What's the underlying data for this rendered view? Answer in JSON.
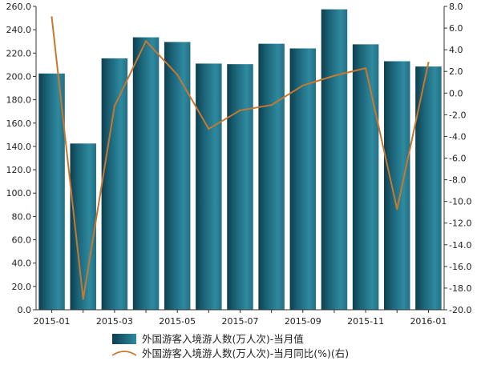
{
  "chart_data": {
    "type": "bar",
    "categories": [
      "2015-01",
      "2015-02",
      "2015-03",
      "2015-04",
      "2015-05",
      "2015-06",
      "2015-07",
      "2015-08",
      "2015-09",
      "2015-10",
      "2015-11",
      "2015-12",
      "2016-01"
    ],
    "x_tick_labels": [
      "2015-01",
      "2015-03",
      "2015-05",
      "2015-07",
      "2015-09",
      "2015-11",
      "2016-01"
    ],
    "series": [
      {
        "name": "外国游客入境游人数(万人次)-当月值",
        "type": "bar",
        "axis": "left",
        "color": "#1f6f84",
        "values": [
          202.5,
          142.5,
          215.5,
          233.5,
          229.5,
          211.0,
          210.5,
          228.0,
          224.0,
          257.5,
          227.5,
          213.0,
          208.5
        ]
      },
      {
        "name": "外国游客入境游人数(万人次)-当月同比(%)(右)",
        "type": "line",
        "axis": "right",
        "color": "#c8782e",
        "values": [
          7.0,
          -19.0,
          -1.2,
          4.8,
          1.7,
          -3.3,
          -1.6,
          -1.1,
          0.7,
          1.6,
          2.3,
          -10.7,
          2.8
        ]
      }
    ],
    "y_left": {
      "ylim": [
        0,
        260
      ],
      "ticks": [
        "0.0",
        "20.0",
        "40.0",
        "60.0",
        "80.0",
        "100.0",
        "120.0",
        "140.0",
        "160.0",
        "180.0",
        "200.0",
        "220.0",
        "240.0",
        "260.0"
      ]
    },
    "y_right": {
      "ylim": [
        -20,
        8
      ],
      "ticks": [
        "-20.0",
        "-18.0",
        "-16.0",
        "-14.0",
        "-12.0",
        "-10.0",
        "-8.0",
        "-6.0",
        "-4.0",
        "-2.0",
        "0.0",
        "2.0",
        "4.0",
        "6.0",
        "8.0"
      ]
    },
    "grid": false,
    "legend_position": "bottom"
  }
}
